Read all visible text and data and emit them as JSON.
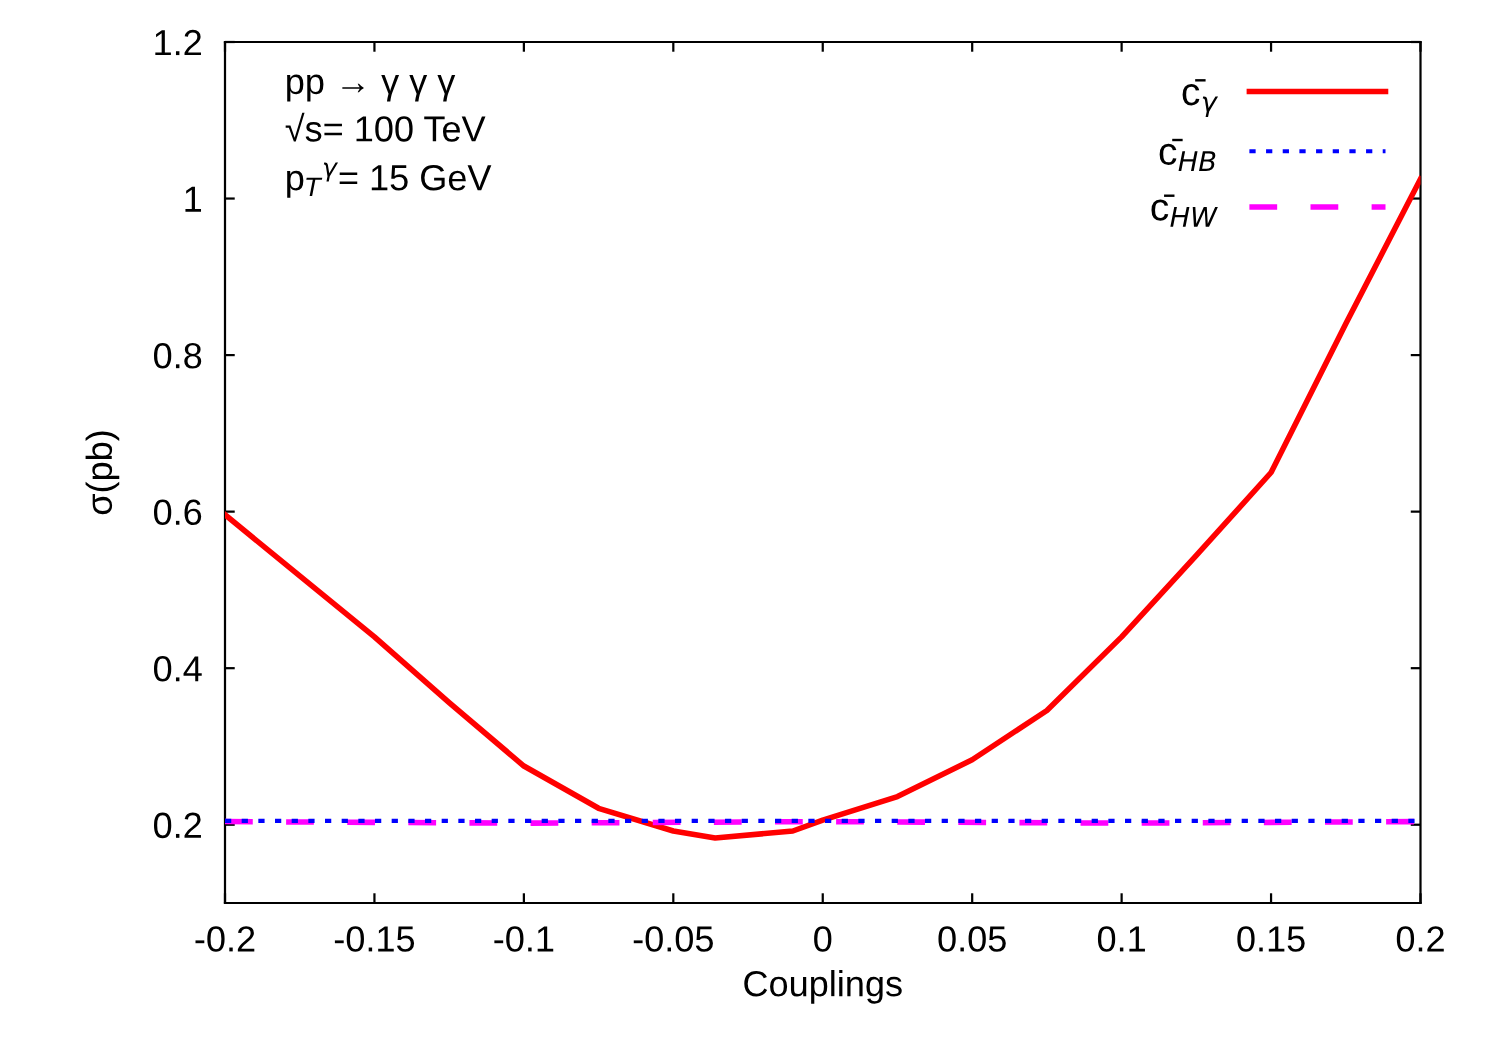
{
  "chart_data": {
    "type": "line",
    "xlabel": "Couplings",
    "ylabel": "σ(pb)",
    "xlim": [
      -0.2,
      0.2
    ],
    "xticks": [
      -0.2,
      -0.15,
      -0.1,
      -0.05,
      0,
      0.05,
      0.1,
      0.15,
      0.2
    ],
    "ylim": [
      0.1,
      1.2
    ],
    "yticks": [
      {
        "value": 0.2,
        "label": "0.2"
      },
      {
        "value": 0.4,
        "label": "0.4"
      },
      {
        "value": 0.6,
        "label": "0.6"
      },
      {
        "value": 0.8,
        "label": "0.8"
      },
      {
        "value": 1.0,
        "label": "1"
      },
      {
        "value": 1.2,
        "label": "1.2"
      }
    ],
    "grid": false,
    "legend": "top right",
    "annotations": [
      "pp → γ γ γ",
      "√s= 100 TeV",
      "p$_{T}$$^{γ}$= 15 GeV"
    ],
    "series": [
      {
        "name": "c̄$_{γ}$",
        "color": "#ff0000",
        "line_style": "solid",
        "x": [
          -0.2,
          -0.175,
          -0.15,
          -0.125,
          -0.1,
          -0.075,
          -0.05,
          -0.036,
          -0.01,
          0,
          0.025,
          0.05,
          0.075,
          0.1,
          0.125,
          0.15,
          0.175,
          0.2
        ],
        "values": [
          0.596,
          0.518,
          0.44,
          0.356,
          0.275,
          0.221,
          0.192,
          0.183,
          0.192,
          0.206,
          0.236,
          0.283,
          0.346,
          0.44,
          0.544,
          0.65,
          0.84,
          1.025
        ]
      },
      {
        "name": "c̄$_{HB}$",
        "color": "#0000ff",
        "line_style": "dotted",
        "x": [
          -0.2,
          -0.1,
          0,
          0.1,
          0.2
        ],
        "values": [
          0.205,
          0.205,
          0.205,
          0.205,
          0.205
        ]
      },
      {
        "name": "c̄$_{HW}$",
        "color": "#ff00ff",
        "line_style": "dashed",
        "x": [
          -0.2,
          -0.1,
          0,
          0.1,
          0.2
        ],
        "values": [
          0.204,
          0.202,
          0.204,
          0.202,
          0.204
        ]
      }
    ]
  }
}
